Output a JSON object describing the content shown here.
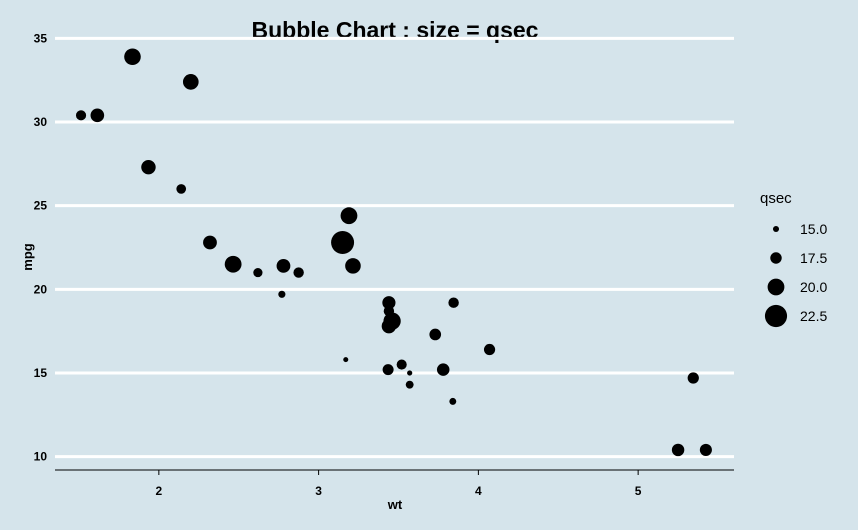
{
  "chart_data": {
    "type": "scatter",
    "title": "Bubble Chart : size = qsec",
    "xlabel": "wt",
    "ylabel": "mpg",
    "xlim": [
      1.35,
      5.6
    ],
    "ylim": [
      9.2,
      35.5
    ],
    "x_ticks": [
      2,
      3,
      4,
      5
    ],
    "x_tick_labels": [
      "2",
      "3",
      "4",
      "5"
    ],
    "y_ticks": [
      10,
      15,
      20,
      25,
      30,
      35
    ],
    "y_tick_labels": [
      "10",
      "15",
      "20",
      "25",
      "30",
      "35"
    ],
    "grid": "horizontal",
    "legend": {
      "title": "qsec",
      "placement": "right",
      "values": [
        15.0,
        17.5,
        20.0,
        22.5
      ],
      "labels": [
        "15.0",
        "17.5",
        "20.0",
        "22.5"
      ]
    },
    "size_range": [
      14.5,
      22.9
    ],
    "points": [
      {
        "x": 2.62,
        "y": 21.0,
        "size": 16.46
      },
      {
        "x": 2.875,
        "y": 21.0,
        "size": 17.02
      },
      {
        "x": 2.32,
        "y": 22.8,
        "size": 18.61
      },
      {
        "x": 3.215,
        "y": 21.4,
        "size": 19.44
      },
      {
        "x": 3.44,
        "y": 18.7,
        "size": 17.02
      },
      {
        "x": 3.46,
        "y": 18.1,
        "size": 20.22
      },
      {
        "x": 3.57,
        "y": 14.3,
        "size": 15.84
      },
      {
        "x": 3.19,
        "y": 24.4,
        "size": 20.0
      },
      {
        "x": 3.15,
        "y": 22.8,
        "size": 22.9
      },
      {
        "x": 3.44,
        "y": 19.2,
        "size": 18.3
      },
      {
        "x": 3.44,
        "y": 17.8,
        "size": 18.9
      },
      {
        "x": 4.07,
        "y": 16.4,
        "size": 17.4
      },
      {
        "x": 3.73,
        "y": 17.3,
        "size": 17.6
      },
      {
        "x": 3.78,
        "y": 15.2,
        "size": 18.0
      },
      {
        "x": 5.25,
        "y": 10.4,
        "size": 17.98
      },
      {
        "x": 5.424,
        "y": 10.4,
        "size": 17.82
      },
      {
        "x": 5.345,
        "y": 14.7,
        "size": 17.42
      },
      {
        "x": 2.2,
        "y": 32.4,
        "size": 19.47
      },
      {
        "x": 1.615,
        "y": 30.4,
        "size": 18.52
      },
      {
        "x": 1.835,
        "y": 33.9,
        "size": 19.9
      },
      {
        "x": 2.465,
        "y": 21.5,
        "size": 20.01
      },
      {
        "x": 3.52,
        "y": 15.5,
        "size": 16.87
      },
      {
        "x": 3.435,
        "y": 15.2,
        "size": 17.3
      },
      {
        "x": 3.84,
        "y": 13.3,
        "size": 15.41
      },
      {
        "x": 3.845,
        "y": 19.2,
        "size": 17.05
      },
      {
        "x": 1.935,
        "y": 27.3,
        "size": 18.9
      },
      {
        "x": 2.14,
        "y": 26.0,
        "size": 16.7
      },
      {
        "x": 1.513,
        "y": 30.4,
        "size": 16.9
      },
      {
        "x": 3.17,
        "y": 15.8,
        "size": 14.5
      },
      {
        "x": 2.77,
        "y": 19.7,
        "size": 15.5
      },
      {
        "x": 3.57,
        "y": 15.0,
        "size": 14.6
      },
      {
        "x": 2.78,
        "y": 21.4,
        "size": 18.6
      }
    ]
  }
}
